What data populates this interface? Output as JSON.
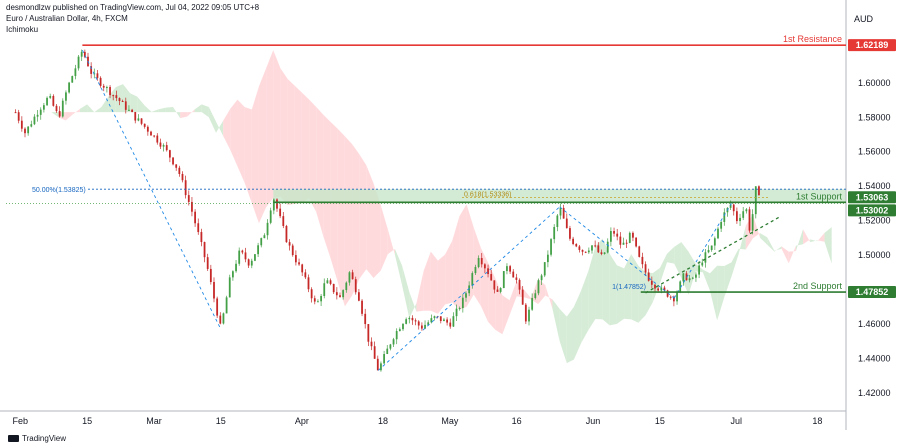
{
  "header": {
    "published_by": "desmondlzw published on TradingView.com, Jul 04, 2022 09:05 UTC+8",
    "symbol": "Euro / Australian Dollar, 4h, FXCM",
    "indicator": "Ichimoku"
  },
  "footer": {
    "brand": "TradingView"
  },
  "colors": {
    "resistance": "#e53935",
    "support": "#2e7d32",
    "support_zone": "#c8e6c9",
    "fib_text": "#1565c0",
    "fib_line": "#1565c0",
    "candle_up": "#43a047",
    "candle_down": "#c62828",
    "cloud_bull": "#c8e6c9",
    "cloud_bear": "#ffcdd2",
    "trendline": "#1e88e5",
    "uptrend": "#2e7d32"
  },
  "chart_data": {
    "type": "candlestick",
    "currency": "AUD",
    "ylim": [
      1.41,
      1.64
    ],
    "y_ticks": [
      "1.42000",
      "1.44000",
      "1.46000",
      "1.48000",
      "1.50000",
      "1.52000",
      "1.54000",
      "1.56000",
      "1.58000",
      "1.60000"
    ],
    "x_ticks": [
      "Feb",
      "15",
      "Mar",
      "15",
      "Apr",
      "18",
      "May",
      "16",
      "Jun",
      "15",
      "Jul",
      "18"
    ],
    "price_path": [
      {
        "x": "Jan 31",
        "y": 1.583
      },
      {
        "x": "Feb 2",
        "y": 1.571
      },
      {
        "x": "Feb 5",
        "y": 1.585
      },
      {
        "x": "Feb 7",
        "y": 1.592
      },
      {
        "x": "Feb 9",
        "y": 1.58
      },
      {
        "x": "Feb 11",
        "y": 1.598
      },
      {
        "x": "Feb 14",
        "y": 1.619
      },
      {
        "x": "Feb 16",
        "y": 1.605
      },
      {
        "x": "Feb 19",
        "y": 1.597
      },
      {
        "x": "Feb 22",
        "y": 1.589
      },
      {
        "x": "Feb 25",
        "y": 1.58
      },
      {
        "x": "Feb 28",
        "y": 1.572
      },
      {
        "x": "Mar 3",
        "y": 1.563
      },
      {
        "x": "Mar 6",
        "y": 1.55
      },
      {
        "x": "Mar 9",
        "y": 1.525
      },
      {
        "x": "Mar 12",
        "y": 1.495
      },
      {
        "x": "Mar 15",
        "y": 1.457
      },
      {
        "x": "Mar 17",
        "y": 1.487
      },
      {
        "x": "Mar 19",
        "y": 1.502
      },
      {
        "x": "Mar 21",
        "y": 1.495
      },
      {
        "x": "Mar 24",
        "y": 1.511
      },
      {
        "x": "Mar 26",
        "y": 1.534
      },
      {
        "x": "Mar 29",
        "y": 1.507
      },
      {
        "x": "Apr 1",
        "y": 1.49
      },
      {
        "x": "Apr 4",
        "y": 1.47
      },
      {
        "x": "Apr 6",
        "y": 1.485
      },
      {
        "x": "Apr 9",
        "y": 1.475
      },
      {
        "x": "Apr 11",
        "y": 1.49
      },
      {
        "x": "Apr 13",
        "y": 1.475
      },
      {
        "x": "Apr 15",
        "y": 1.45
      },
      {
        "x": "Apr 17",
        "y": 1.433
      },
      {
        "x": "Apr 20",
        "y": 1.452
      },
      {
        "x": "Apr 23",
        "y": 1.465
      },
      {
        "x": "Apr 26",
        "y": 1.458
      },
      {
        "x": "Apr 29",
        "y": 1.464
      },
      {
        "x": "May 2",
        "y": 1.46
      },
      {
        "x": "May 5",
        "y": 1.475
      },
      {
        "x": "May 8",
        "y": 1.5
      },
      {
        "x": "May 10",
        "y": 1.49
      },
      {
        "x": "May 12",
        "y": 1.477
      },
      {
        "x": "May 14",
        "y": 1.495
      },
      {
        "x": "May 16",
        "y": 1.485
      },
      {
        "x": "May 18",
        "y": 1.462
      },
      {
        "x": "May 20",
        "y": 1.48
      },
      {
        "x": "May 22",
        "y": 1.495
      },
      {
        "x": "May 25",
        "y": 1.528
      },
      {
        "x": "May 27",
        "y": 1.51
      },
      {
        "x": "May 30",
        "y": 1.502
      },
      {
        "x": "Jun 1",
        "y": 1.506
      },
      {
        "x": "Jun 3",
        "y": 1.498
      },
      {
        "x": "Jun 5",
        "y": 1.515
      },
      {
        "x": "Jun 7",
        "y": 1.505
      },
      {
        "x": "Jun 9",
        "y": 1.512
      },
      {
        "x": "Jun 11",
        "y": 1.495
      },
      {
        "x": "Jun 13",
        "y": 1.485
      },
      {
        "x": "Jun 15",
        "y": 1.48
      },
      {
        "x": "Jun 18",
        "y": 1.475
      },
      {
        "x": "Jun 20",
        "y": 1.488
      },
      {
        "x": "Jun 22",
        "y": 1.485
      },
      {
        "x": "Jun 24",
        "y": 1.498
      },
      {
        "x": "Jun 26",
        "y": 1.505
      },
      {
        "x": "Jun 28",
        "y": 1.522
      },
      {
        "x": "Jun 30",
        "y": 1.53
      },
      {
        "x": "Jul 1",
        "y": 1.52
      },
      {
        "x": "Jul 3",
        "y": 1.528
      },
      {
        "x": "Jul 4",
        "y": 1.512
      },
      {
        "x": "Jul 5",
        "y": 1.539
      },
      {
        "x": "Jul 6",
        "y": 1.531
      }
    ],
    "levels": [
      {
        "key": "resistance",
        "name": "1st Resistance",
        "value": 1.62189,
        "label": "1.62189"
      },
      {
        "key": "support1",
        "name": "1st Support",
        "value": 1.53063,
        "label": "1.53063"
      },
      {
        "key": "support2",
        "name": "2nd Support",
        "value": 1.47852,
        "label": "1.47852"
      }
    ],
    "current_price": {
      "value": 1.53002,
      "label": "1.53002"
    },
    "support_zone": [
      1.53063,
      1.53825
    ],
    "fib_retracement": {
      "label": "50.00%(1.53825)",
      "value": 1.53825
    },
    "fib_extension": {
      "label": "0.618(1.53336)",
      "value": 1.53336
    },
    "small_fib": {
      "label": "1(1.47852)",
      "value": 1.47852
    },
    "uptrend_line": [
      {
        "x": "Jun 12",
        "y": 1.478
      },
      {
        "x": "Jul 10",
        "y": 1.522
      }
    ]
  }
}
